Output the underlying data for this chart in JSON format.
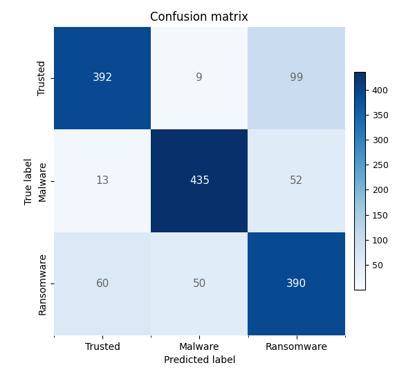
{
  "matrix": [
    [
      392,
      9,
      99
    ],
    [
      13,
      435,
      52
    ],
    [
      60,
      50,
      390
    ]
  ],
  "classes": [
    "Trusted",
    "Malware",
    "Ransomware"
  ],
  "xlabel": "Predicted label",
  "ylabel": "True label",
  "title": "Confusion matrix",
  "colormap": "Blues",
  "vmin": 0,
  "vmax": 435,
  "title_fontsize": 12,
  "label_fontsize": 10,
  "tick_fontsize": 10,
  "annot_fontsize": 11,
  "cbar_ticks": [
    50,
    100,
    150,
    200,
    250,
    300,
    350,
    400
  ],
  "figsize": [
    6.0,
    5.51
  ],
  "dpi": 100
}
